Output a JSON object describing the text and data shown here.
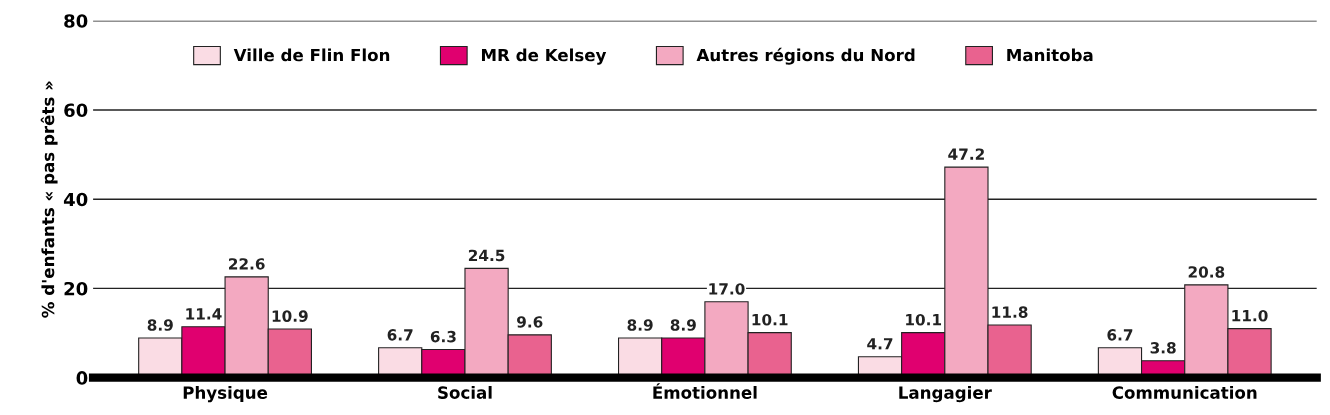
{
  "chart_data": {
    "type": "bar",
    "ylabel": "% d'enfants « pas prêts »",
    "categories": [
      "Physique",
      "Social",
      "Émotionnel",
      "Langagier",
      "Communication"
    ],
    "series": [
      {
        "name": "Ville de Flin Flon",
        "color": "#fadce4",
        "values": [
          8.9,
          6.7,
          8.9,
          4.7,
          6.7
        ],
        "value_labels": [
          "8.9",
          "6.7",
          "8.9",
          "4.7",
          "6.7"
        ]
      },
      {
        "name": "MR de Kelsey",
        "color": "#e0006f",
        "values": [
          11.4,
          6.3,
          8.9,
          10.1,
          3.8
        ],
        "value_labels": [
          "11.4",
          "6.3",
          "8.9",
          "10.1",
          "3.8"
        ]
      },
      {
        "name": "Autres régions du Nord",
        "color": "#f3a9c1",
        "values": [
          22.6,
          24.5,
          17.0,
          47.2,
          20.8
        ],
        "value_labels": [
          "22.6",
          "24.5",
          "17.0",
          "47.2",
          "20.8"
        ]
      },
      {
        "name": "Manitoba",
        "color": "#e9628f",
        "values": [
          10.9,
          9.6,
          10.1,
          11.8,
          11.0
        ],
        "value_labels": [
          "10.9",
          "9.6",
          "10.1",
          "11.8",
          "11.0"
        ]
      }
    ],
    "ylim": [
      0,
      80
    ],
    "yticks": [
      0,
      20,
      40,
      60,
      80
    ],
    "grid": "y",
    "legend": "top"
  }
}
